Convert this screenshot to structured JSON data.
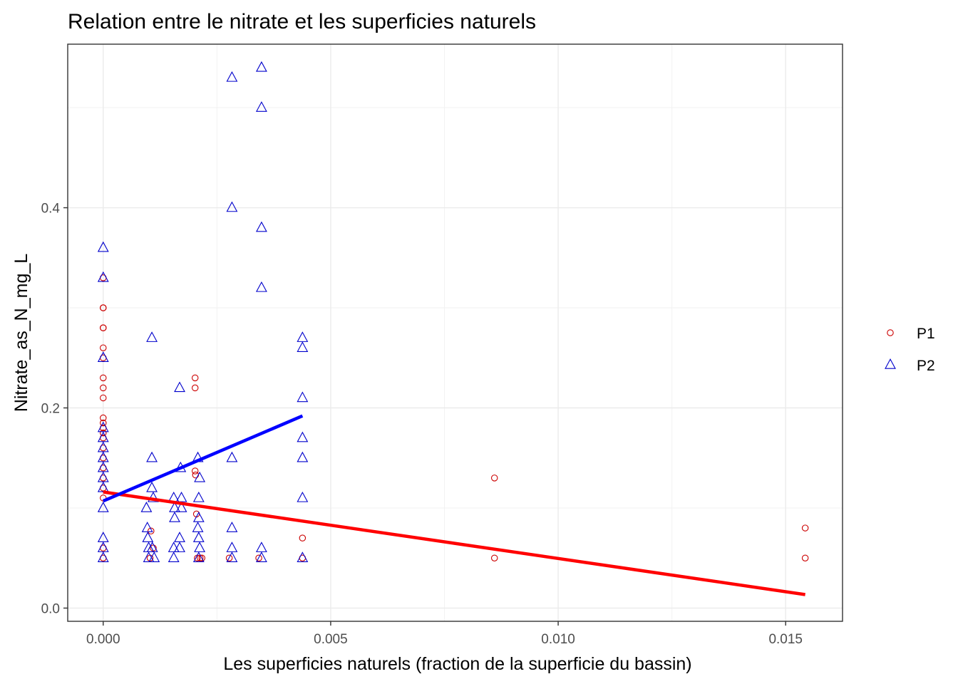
{
  "chart_data": {
    "type": "scatter",
    "title": "Relation entre le nitrate et les superficies naturels",
    "xlabel": "Les superficies naturels (fraction de la superficie du bassin)",
    "ylabel": "Nitrate_as_N_mg_L",
    "xlim": [
      -0.00078,
      0.01625
    ],
    "ylim": [
      -0.0132,
      0.5634
    ],
    "x_ticks": [
      0.0,
      0.005,
      0.01,
      0.015
    ],
    "x_tick_labels": [
      "0.000",
      "0.005",
      "0.010",
      "0.015"
    ],
    "y_ticks": [
      0.0,
      0.2,
      0.4
    ],
    "y_tick_labels": [
      "0.0",
      "0.2",
      "0.4"
    ],
    "grid": true,
    "legend": "right",
    "series": [
      {
        "name": "P1",
        "marker": "circle",
        "color": "#cc0000",
        "points": [
          [
            0,
            0.3
          ],
          [
            0,
            0.3
          ],
          [
            0,
            0.28
          ],
          [
            0,
            0.28
          ],
          [
            0,
            0.26
          ],
          [
            0,
            0.25
          ],
          [
            0,
            0.23
          ],
          [
            0,
            0.22
          ],
          [
            0,
            0.21
          ],
          [
            0,
            0.19
          ],
          [
            0,
            0.185
          ],
          [
            0,
            0.18
          ],
          [
            0,
            0.175
          ],
          [
            0,
            0.17
          ],
          [
            0,
            0.16
          ],
          [
            0,
            0.15
          ],
          [
            0,
            0.14
          ],
          [
            0,
            0.13
          ],
          [
            0,
            0.12
          ],
          [
            0,
            0.11
          ],
          [
            0,
            0.05
          ],
          [
            0,
            0.06
          ],
          [
            0,
            0.33
          ],
          [
            0.00103,
            0.05
          ],
          [
            0.00105,
            0.077
          ],
          [
            0.0011,
            0.06
          ],
          [
            0.00202,
            0.23
          ],
          [
            0.00202,
            0.22
          ],
          [
            0.00202,
            0.137
          ],
          [
            0.00203,
            0.133
          ],
          [
            0.00205,
            0.094
          ],
          [
            0.00207,
            0.05
          ],
          [
            0.00213,
            0.05
          ],
          [
            0.00217,
            0.05
          ],
          [
            0.00277,
            0.05
          ],
          [
            0.00342,
            0.05
          ],
          [
            0.00438,
            0.07
          ],
          [
            0.00438,
            0.05
          ],
          [
            0.0086,
            0.13
          ],
          [
            0.0086,
            0.05
          ],
          [
            0.01543,
            0.08
          ],
          [
            0.01543,
            0.05
          ]
        ],
        "fit": {
          "x": [
            0,
            0.01543
          ],
          "y": [
            0.116,
            0.0135
          ]
        }
      },
      {
        "name": "P2",
        "marker": "triangle",
        "color": "#0000cc",
        "points": [
          [
            0,
            0.36
          ],
          [
            0,
            0.33
          ],
          [
            0,
            0.25
          ],
          [
            0,
            0.18
          ],
          [
            0,
            0.17
          ],
          [
            0,
            0.16
          ],
          [
            0,
            0.15
          ],
          [
            0,
            0.14
          ],
          [
            0,
            0.13
          ],
          [
            0,
            0.12
          ],
          [
            0,
            0.1
          ],
          [
            0,
            0.07
          ],
          [
            0,
            0.06
          ],
          [
            0,
            0.05
          ],
          [
            0.00095,
            0.1
          ],
          [
            0.00097,
            0.08
          ],
          [
            0.00098,
            0.07
          ],
          [
            0.001,
            0.06
          ],
          [
            0.001,
            0.05
          ],
          [
            0.00107,
            0.27
          ],
          [
            0.00107,
            0.15
          ],
          [
            0.00107,
            0.12
          ],
          [
            0.0011,
            0.11
          ],
          [
            0.00108,
            0.06
          ],
          [
            0.00112,
            0.05
          ],
          [
            0.00155,
            0.11
          ],
          [
            0.00157,
            0.1
          ],
          [
            0.00157,
            0.09
          ],
          [
            0.00155,
            0.06
          ],
          [
            0.00155,
            0.05
          ],
          [
            0.00168,
            0.22
          ],
          [
            0.0017,
            0.14
          ],
          [
            0.00172,
            0.11
          ],
          [
            0.00172,
            0.1
          ],
          [
            0.00168,
            0.07
          ],
          [
            0.00168,
            0.06
          ],
          [
            0.00208,
            0.15
          ],
          [
            0.00212,
            0.13
          ],
          [
            0.0021,
            0.11
          ],
          [
            0.0021,
            0.09
          ],
          [
            0.00208,
            0.08
          ],
          [
            0.0021,
            0.07
          ],
          [
            0.00212,
            0.06
          ],
          [
            0.0021,
            0.05
          ],
          [
            0.00283,
            0.53
          ],
          [
            0.00283,
            0.4
          ],
          [
            0.00283,
            0.15
          ],
          [
            0.00283,
            0.08
          ],
          [
            0.00283,
            0.06
          ],
          [
            0.00283,
            0.05
          ],
          [
            0.00348,
            0.54
          ],
          [
            0.00348,
            0.5
          ],
          [
            0.00348,
            0.38
          ],
          [
            0.00348,
            0.32
          ],
          [
            0.00348,
            0.06
          ],
          [
            0.00348,
            0.05
          ],
          [
            0.00438,
            0.27
          ],
          [
            0.00438,
            0.26
          ],
          [
            0.00438,
            0.21
          ],
          [
            0.00438,
            0.17
          ],
          [
            0.00438,
            0.15
          ],
          [
            0.00438,
            0.11
          ],
          [
            0.00438,
            0.05
          ]
        ],
        "fit": {
          "x": [
            0,
            0.00438
          ],
          "y": [
            0.107,
            0.192
          ]
        }
      }
    ]
  }
}
